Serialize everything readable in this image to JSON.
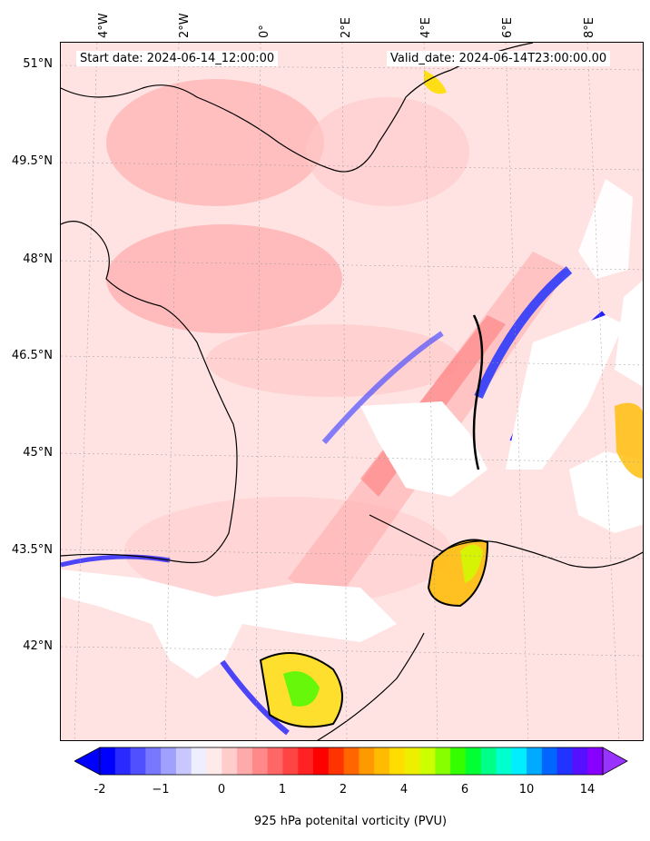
{
  "map": {
    "start_date": "Start date: 2024-06-14_12:00:00",
    "valid_date": "Valid_date: 2024-06-14T23:00:00.00",
    "lat_labels": [
      "51°N",
      "49.5°N",
      "48°N",
      "46.5°N",
      "45°N",
      "43.5°N",
      "42°N"
    ],
    "lon_labels": [
      "4°W",
      "2°W",
      "0°",
      "2°E",
      "4°E",
      "6°E",
      "8°E"
    ],
    "colors": {
      "background": "#ffe3e3",
      "land_missing": "#ffffff",
      "coast": "#000000"
    }
  },
  "colorbar": {
    "title": "925 hPa potenital vorticity (PVU)",
    "ticks": [
      "-2",
      "−1",
      "0",
      "1",
      "2",
      "4",
      "6",
      "10",
      "14"
    ],
    "tick_values": [
      -2,
      -1,
      0,
      1,
      2,
      4,
      6,
      10,
      14
    ],
    "colors": [
      "#0000ff",
      "#2a2aff",
      "#5050ff",
      "#7878ff",
      "#a0a0ff",
      "#c8c8ff",
      "#eeeeff",
      "#ffeaea",
      "#ffcccc",
      "#ffaaaa",
      "#ff8888",
      "#ff6666",
      "#ff4444",
      "#ff2222",
      "#ff0000",
      "#ff3300",
      "#ff6600",
      "#ff9900",
      "#ffbb00",
      "#ffdd00",
      "#eeee00",
      "#ccff00",
      "#88ff00",
      "#33ff00",
      "#00ff33",
      "#00ff88",
      "#00ffcc",
      "#00eeff",
      "#00aaff",
      "#0066ff",
      "#2233ff",
      "#5511ff",
      "#8800ff"
    ],
    "extend_min": "#0000ff",
    "extend_max": "#9933ff"
  }
}
